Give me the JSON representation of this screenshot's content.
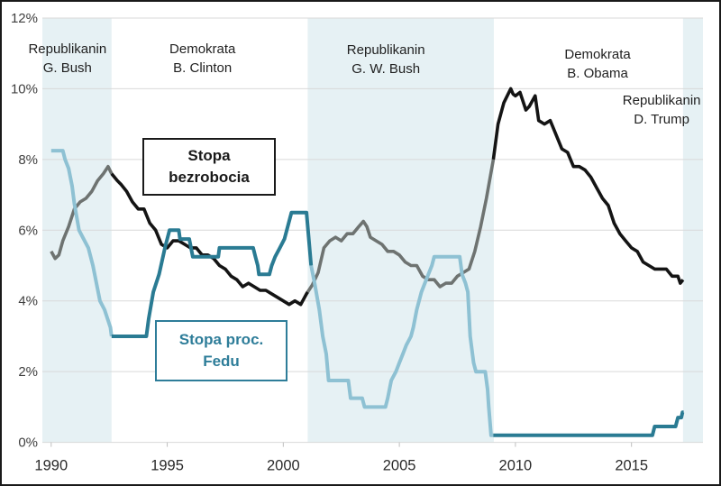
{
  "chart_data": {
    "type": "line",
    "title": "",
    "x_axis": {
      "range": [
        1989.62,
        2018.08
      ],
      "ticks": [
        1990,
        1995,
        2000,
        2005,
        2010,
        2015
      ],
      "tick_labels": [
        "1990",
        "1995",
        "2000",
        "2005",
        "2010",
        "2015"
      ]
    },
    "y_axis": {
      "range": [
        0,
        12
      ],
      "tick_step": 2,
      "tick_labels": [
        "0%",
        "2%",
        "4%",
        "6%",
        "8%",
        "10%",
        "12%"
      ],
      "grid": true,
      "grid_color": "#d9d9d9"
    },
    "shaded_periods": [
      {
        "name": "republican-gbush-era",
        "from": 1989.62,
        "to": 1992.6,
        "color": "#e6f1f4"
      },
      {
        "name": "republican-gwbush-era",
        "from": 2001.05,
        "to": 2009.07,
        "color": "#e6f1f4"
      },
      {
        "name": "republican-trump-era",
        "from": 2017.22,
        "to": 2018.08,
        "color": "#e6f1f4"
      }
    ],
    "president_labels": [
      {
        "lines": [
          "Republikanin",
          "G. Bush"
        ],
        "x": 1990.7,
        "y": 10.84
      },
      {
        "lines": [
          "Demokrata",
          "B. Clinton"
        ],
        "x": 1996.52,
        "y": 10.84
      },
      {
        "lines": [
          "Republikanin",
          "G. W. Bush"
        ],
        "x": 2004.42,
        "y": 10.82
      },
      {
        "lines": [
          "Demokrata",
          "B. Obama"
        ],
        "x": 2013.54,
        "y": 10.69
      },
      {
        "lines": [
          "Republikanin",
          "D. Trump"
        ],
        "x": 2016.3,
        "y": 9.39
      }
    ],
    "series": [
      {
        "name": "Stopa bezrobocia",
        "stroke_width": 3.6,
        "segments": [
          {
            "color": "#6e7371",
            "points": [
              [
                1990.0,
                5.4
              ],
              [
                1990.17,
                5.2
              ],
              [
                1990.33,
                5.3
              ],
              [
                1990.5,
                5.7
              ],
              [
                1990.75,
                6.1
              ],
              [
                1991.0,
                6.6
              ],
              [
                1991.25,
                6.8
              ],
              [
                1991.5,
                6.9
              ],
              [
                1991.75,
                7.1
              ],
              [
                1992.0,
                7.4
              ],
              [
                1992.25,
                7.6
              ],
              [
                1992.45,
                7.8
              ],
              [
                1992.6,
                7.6
              ]
            ]
          },
          {
            "color": "#141414",
            "points": [
              [
                1992.6,
                7.6
              ],
              [
                1992.85,
                7.4
              ],
              [
                1993.0,
                7.3
              ],
              [
                1993.25,
                7.1
              ],
              [
                1993.5,
                6.8
              ],
              [
                1993.75,
                6.6
              ],
              [
                1994.0,
                6.6
              ],
              [
                1994.25,
                6.2
              ],
              [
                1994.5,
                6.0
              ],
              [
                1994.75,
                5.6
              ],
              [
                1995.0,
                5.5
              ],
              [
                1995.25,
                5.7
              ],
              [
                1995.5,
                5.7
              ],
              [
                1995.75,
                5.6
              ],
              [
                1996.0,
                5.5
              ],
              [
                1996.25,
                5.5
              ],
              [
                1996.5,
                5.3
              ],
              [
                1996.75,
                5.3
              ],
              [
                1997.0,
                5.2
              ],
              [
                1997.25,
                5.0
              ],
              [
                1997.5,
                4.9
              ],
              [
                1997.75,
                4.7
              ],
              [
                1998.0,
                4.6
              ],
              [
                1998.25,
                4.4
              ],
              [
                1998.5,
                4.5
              ],
              [
                1998.75,
                4.4
              ],
              [
                1999.0,
                4.3
              ],
              [
                1999.25,
                4.3
              ],
              [
                1999.5,
                4.2
              ],
              [
                1999.75,
                4.1
              ],
              [
                2000.0,
                4.0
              ],
              [
                2000.25,
                3.9
              ],
              [
                2000.5,
                4.0
              ],
              [
                2000.75,
                3.9
              ],
              [
                2001.0,
                4.2
              ],
              [
                2001.05,
                4.25
              ]
            ]
          },
          {
            "color": "#6e7371",
            "points": [
              [
                2001.05,
                4.25
              ],
              [
                2001.25,
                4.45
              ],
              [
                2001.5,
                4.8
              ],
              [
                2001.75,
                5.5
              ],
              [
                2002.0,
                5.7
              ],
              [
                2002.25,
                5.8
              ],
              [
                2002.5,
                5.7
              ],
              [
                2002.75,
                5.9
              ],
              [
                2003.0,
                5.9
              ],
              [
                2003.25,
                6.1
              ],
              [
                2003.45,
                6.25
              ],
              [
                2003.6,
                6.1
              ],
              [
                2003.75,
                5.8
              ],
              [
                2004.0,
                5.7
              ],
              [
                2004.25,
                5.6
              ],
              [
                2004.5,
                5.4
              ],
              [
                2004.75,
                5.4
              ],
              [
                2005.0,
                5.3
              ],
              [
                2005.25,
                5.1
              ],
              [
                2005.5,
                5.0
              ],
              [
                2005.75,
                5.0
              ],
              [
                2006.0,
                4.7
              ],
              [
                2006.25,
                4.6
              ],
              [
                2006.5,
                4.6
              ],
              [
                2006.75,
                4.4
              ],
              [
                2007.0,
                4.5
              ],
              [
                2007.25,
                4.5
              ],
              [
                2007.5,
                4.7
              ],
              [
                2007.75,
                4.8
              ],
              [
                2008.0,
                4.9
              ],
              [
                2008.25,
                5.4
              ],
              [
                2008.5,
                6.1
              ],
              [
                2008.75,
                6.9
              ],
              [
                2009.05,
                8.0
              ]
            ]
          },
          {
            "color": "#141414",
            "points": [
              [
                2009.05,
                8.0
              ],
              [
                2009.25,
                9.0
              ],
              [
                2009.5,
                9.6
              ],
              [
                2009.8,
                10.0
              ],
              [
                2009.9,
                9.85
              ],
              [
                2010.0,
                9.8
              ],
              [
                2010.2,
                9.9
              ],
              [
                2010.45,
                9.4
              ],
              [
                2010.6,
                9.5
              ],
              [
                2010.85,
                9.8
              ],
              [
                2011.0,
                9.1
              ],
              [
                2011.25,
                9.0
              ],
              [
                2011.5,
                9.1
              ],
              [
                2011.75,
                8.7
              ],
              [
                2012.0,
                8.3
              ],
              [
                2012.25,
                8.2
              ],
              [
                2012.5,
                7.8
              ],
              [
                2012.75,
                7.8
              ],
              [
                2013.0,
                7.7
              ],
              [
                2013.25,
                7.5
              ],
              [
                2013.5,
                7.2
              ],
              [
                2013.75,
                6.9
              ],
              [
                2014.0,
                6.7
              ],
              [
                2014.25,
                6.2
              ],
              [
                2014.5,
                5.9
              ],
              [
                2014.75,
                5.7
              ],
              [
                2015.0,
                5.5
              ],
              [
                2015.25,
                5.4
              ],
              [
                2015.5,
                5.1
              ],
              [
                2015.75,
                5.0
              ],
              [
                2016.0,
                4.9
              ],
              [
                2016.25,
                4.9
              ],
              [
                2016.5,
                4.9
              ],
              [
                2016.75,
                4.7
              ],
              [
                2017.0,
                4.7
              ],
              [
                2017.1,
                4.5
              ],
              [
                2017.22,
                4.6
              ]
            ]
          }
        ]
      },
      {
        "name": "Stopa proc. Fedu",
        "stroke_width": 4,
        "segments": [
          {
            "color": "#8ec1d3",
            "points": [
              [
                1990.0,
                8.25
              ],
              [
                1990.5,
                8.25
              ],
              [
                1990.6,
                8.0
              ],
              [
                1990.75,
                7.75
              ],
              [
                1990.9,
                7.25
              ],
              [
                1991.0,
                6.75
              ],
              [
                1991.2,
                6.0
              ],
              [
                1991.4,
                5.75
              ],
              [
                1991.6,
                5.5
              ],
              [
                1991.8,
                5.0
              ],
              [
                1991.95,
                4.5
              ],
              [
                1992.1,
                4.0
              ],
              [
                1992.3,
                3.75
              ],
              [
                1992.55,
                3.25
              ],
              [
                1992.6,
                3.0
              ]
            ]
          },
          {
            "color": "#2a7b93",
            "points": [
              [
                1992.6,
                3.0
              ],
              [
                1994.1,
                3.0
              ],
              [
                1994.2,
                3.5
              ],
              [
                1994.4,
                4.25
              ],
              [
                1994.65,
                4.75
              ],
              [
                1994.9,
                5.5
              ],
              [
                1995.1,
                6.0
              ],
              [
                1995.5,
                6.0
              ],
              [
                1995.55,
                5.75
              ],
              [
                1995.95,
                5.75
              ],
              [
                1996.1,
                5.25
              ],
              [
                1997.2,
                5.25
              ],
              [
                1997.25,
                5.5
              ],
              [
                1998.7,
                5.5
              ],
              [
                1998.8,
                5.25
              ],
              [
                1998.9,
                5.0
              ],
              [
                1998.95,
                4.75
              ],
              [
                1999.4,
                4.75
              ],
              [
                1999.5,
                5.0
              ],
              [
                1999.65,
                5.25
              ],
              [
                1999.85,
                5.5
              ],
              [
                2000.05,
                5.75
              ],
              [
                2000.35,
                6.5
              ],
              [
                2001.0,
                6.5
              ],
              [
                2001.2,
                5.0
              ]
            ]
          },
          {
            "color": "#8ec1d3",
            "points": [
              [
                2001.2,
                5.0
              ],
              [
                2001.35,
                4.5
              ],
              [
                2001.55,
                3.75
              ],
              [
                2001.7,
                3.0
              ],
              [
                2001.85,
                2.5
              ],
              [
                2001.95,
                1.75
              ],
              [
                2002.8,
                1.75
              ],
              [
                2002.9,
                1.25
              ],
              [
                2003.4,
                1.25
              ],
              [
                2003.5,
                1.0
              ],
              [
                2004.4,
                1.0
              ],
              [
                2004.5,
                1.25
              ],
              [
                2004.65,
                1.75
              ],
              [
                2004.85,
                2.0
              ],
              [
                2005.0,
                2.25
              ],
              [
                2005.15,
                2.5
              ],
              [
                2005.3,
                2.75
              ],
              [
                2005.5,
                3.0
              ],
              [
                2005.6,
                3.25
              ],
              [
                2005.75,
                3.75
              ],
              [
                2005.95,
                4.25
              ],
              [
                2006.1,
                4.5
              ],
              [
                2006.25,
                4.75
              ],
              [
                2006.4,
                5.0
              ],
              [
                2006.5,
                5.25
              ],
              [
                2007.6,
                5.25
              ],
              [
                2007.7,
                4.75
              ],
              [
                2007.85,
                4.5
              ],
              [
                2007.95,
                4.25
              ],
              [
                2008.05,
                3.0
              ],
              [
                2008.2,
                2.25
              ],
              [
                2008.3,
                2.0
              ],
              [
                2008.7,
                2.0
              ],
              [
                2008.8,
                1.5
              ],
              [
                2008.85,
                1.0
              ],
              [
                2008.95,
                0.2
              ],
              [
                2009.05,
                0.2
              ]
            ]
          },
          {
            "color": "#2a7b93",
            "points": [
              [
                2009.05,
                0.2
              ],
              [
                2015.9,
                0.2
              ],
              [
                2016.0,
                0.45
              ],
              [
                2016.9,
                0.45
              ],
              [
                2017.0,
                0.7
              ],
              [
                2017.15,
                0.7
              ],
              [
                2017.2,
                0.85
              ],
              [
                2017.25,
                0.85
              ]
            ]
          }
        ]
      }
    ]
  },
  "legend": {
    "unemployment": {
      "line1": "Stopa",
      "line2": "bezrobocia",
      "border_color": "#1a1a1a",
      "text_color": "#1a1a1a"
    },
    "fed": {
      "line1": "Stopa proc.",
      "line2": "Fedu",
      "border_color": "#2e7d99",
      "text_color": "#2e7d99"
    }
  },
  "colors": {
    "shading": "#e6f1f4",
    "grid": "#d9d9d9",
    "axis_text": "#3f3f3f",
    "unemployment_rep": "#6e7371",
    "unemployment_dem": "#141414",
    "fed_rep": "#8ec1d3",
    "fed_dem": "#2a7b93"
  }
}
